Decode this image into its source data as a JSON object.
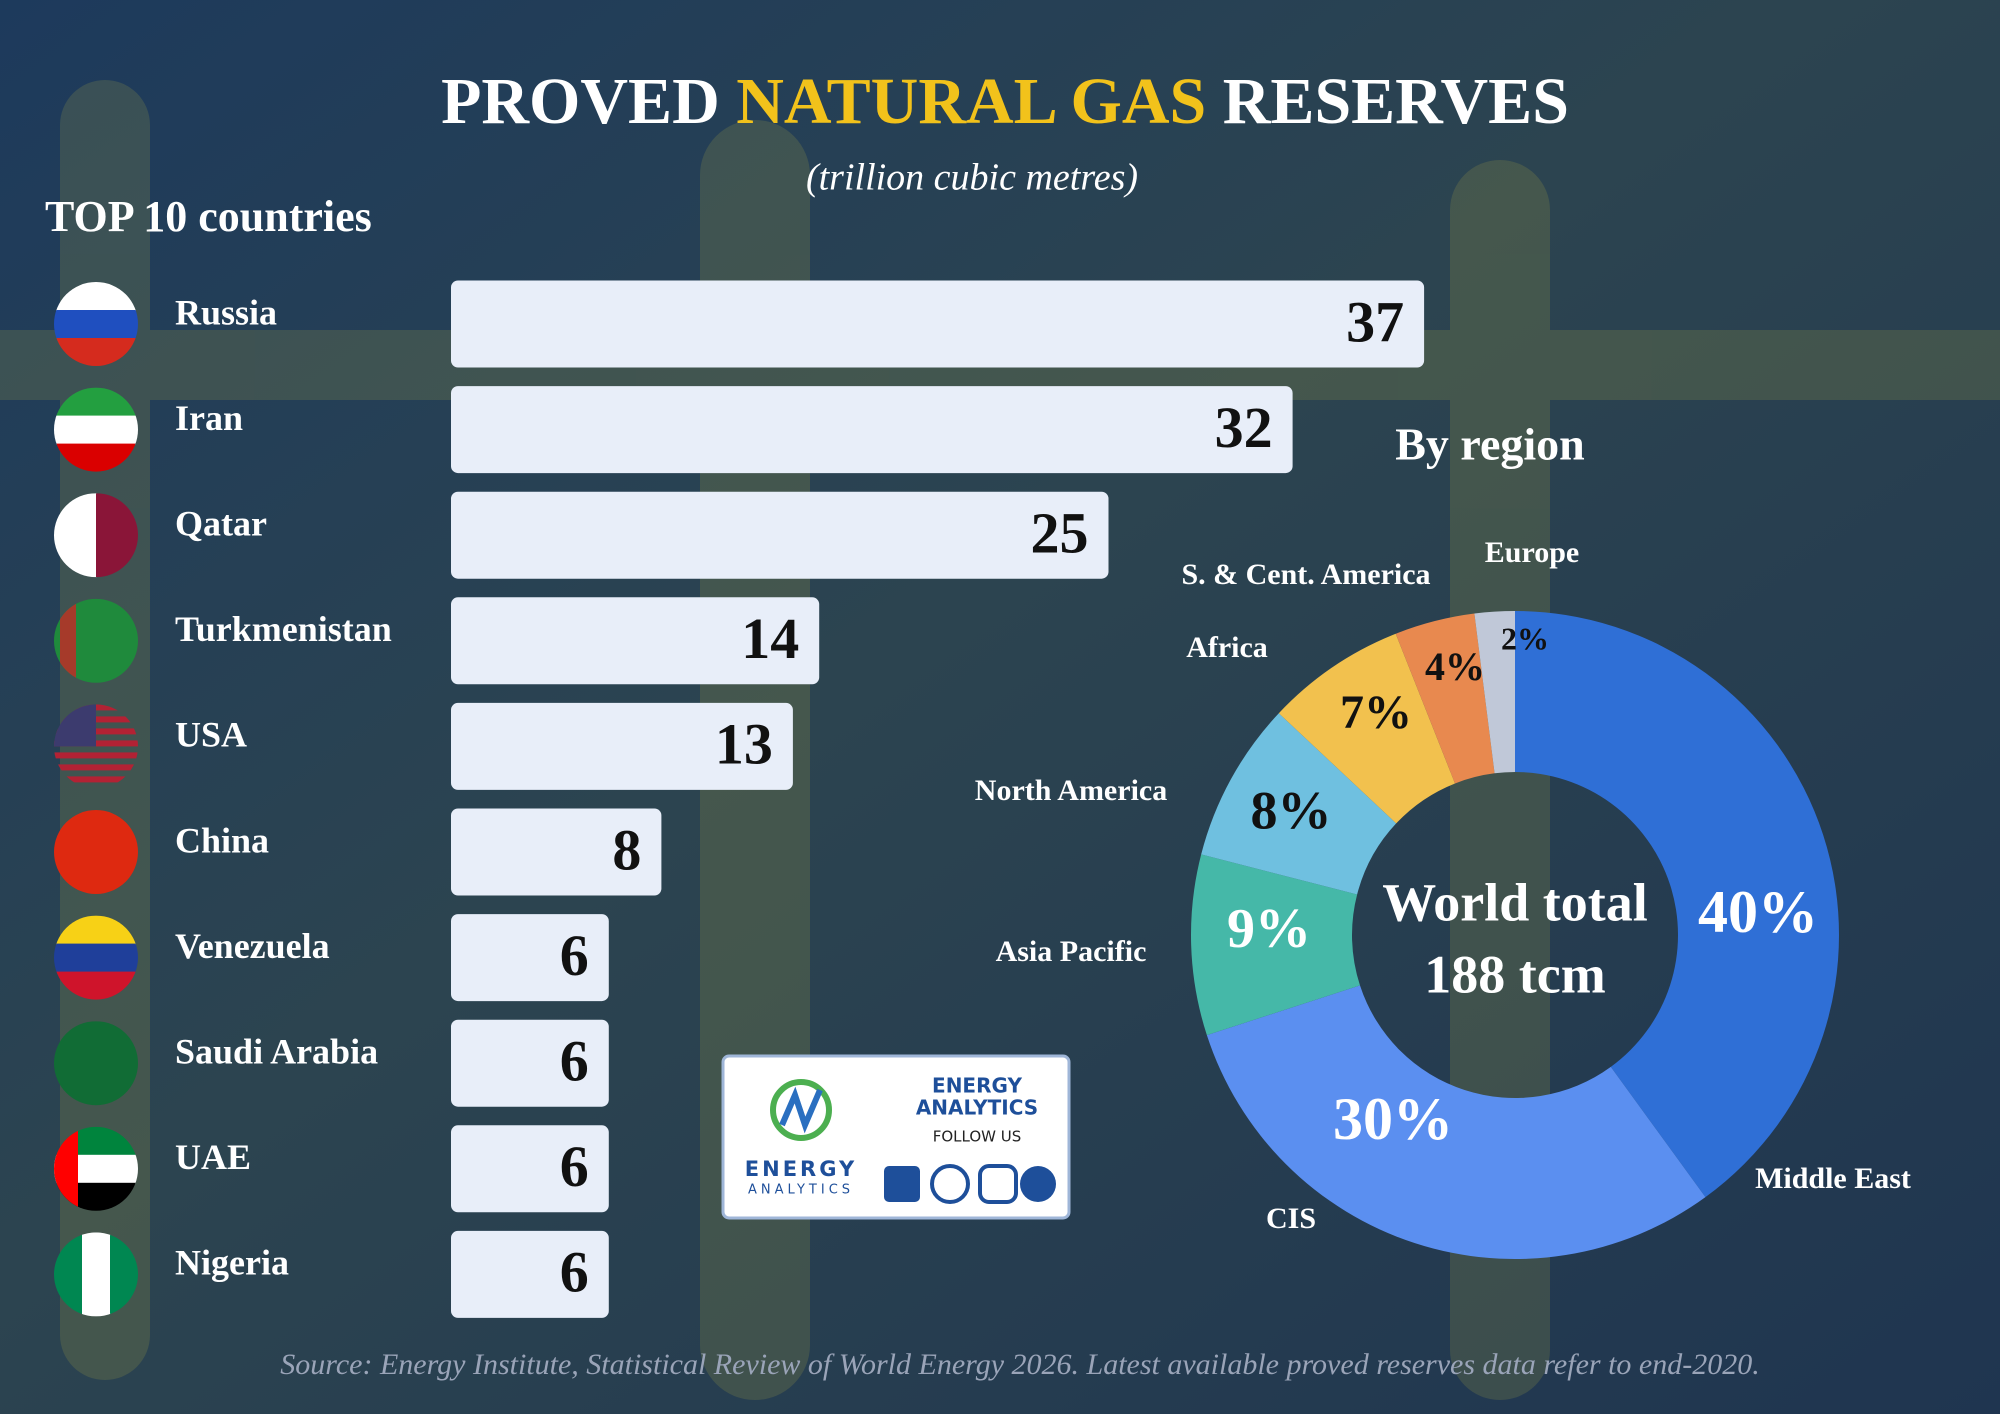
{
  "header": {
    "title_parts": [
      "PROVED",
      "NATURAL GAS",
      "RESERVES"
    ],
    "subtitle": "(trillion cubic metres)"
  },
  "chart_data": [
    {
      "type": "bar",
      "title": "TOP 10 countries",
      "categories": [
        "Russia",
        "Iran",
        "Qatar",
        "Turkmenistan",
        "USA",
        "China",
        "Venezuela",
        "Saudi Arabia",
        "UAE",
        "Nigeria"
      ],
      "values": [
        37,
        32,
        25,
        14,
        13,
        8,
        6,
        6,
        6,
        6
      ],
      "color": "#e8eef9"
    },
    {
      "type": "pie",
      "title": "By region",
      "categories": [
        "Middle East",
        "CIS",
        "Asia Pacific",
        "North America",
        "Africa",
        "S. & Cent. America",
        "Europe"
      ],
      "values": [
        40,
        30,
        9,
        8,
        7,
        4,
        2
      ],
      "value_labels": [
        "40%",
        "30%",
        "9%",
        "8%",
        "7%",
        "4%",
        "2%"
      ],
      "colors": [
        "#2f6fd6",
        "#5b8ff0",
        "#45b8a8",
        "#6fc0e0",
        "#f2c14e",
        "#e8894f",
        "#c0c8d8"
      ],
      "center_text": [
        "World total",
        "188 tcm"
      ]
    }
  ],
  "logo": {
    "heading": [
      "ENERGY",
      "ANALYTICS"
    ],
    "follow": "FOLLOW US",
    "brand": [
      "ENERGY",
      "ANALYTICS"
    ]
  },
  "source": "Source: Energy Institute, Statistical Review of World Energy 2026. Latest available proved reserves data refer to end-2020."
}
